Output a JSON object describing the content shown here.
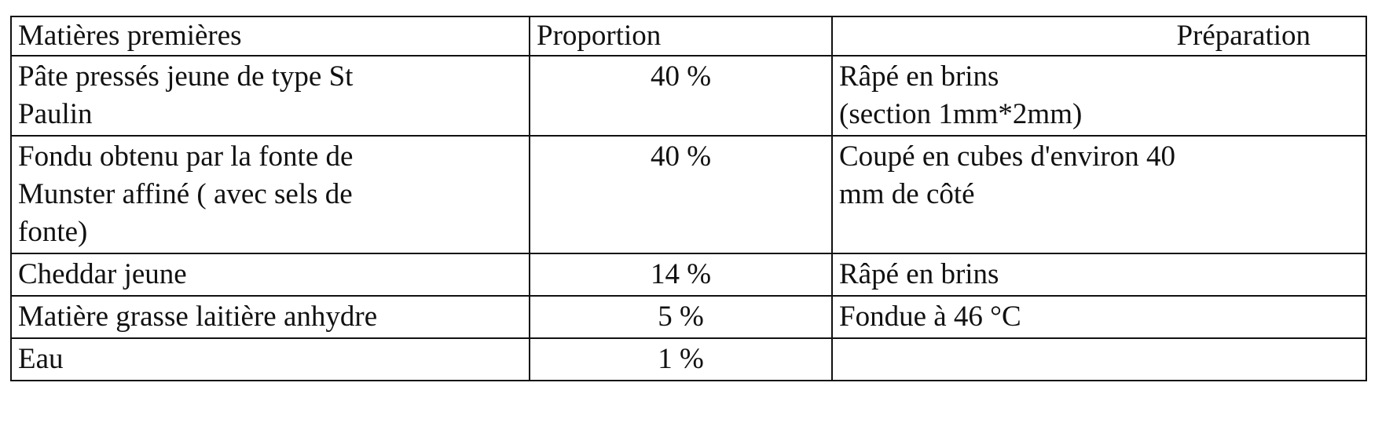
{
  "table": {
    "header": [
      "Matières premières",
      "Proportion",
      "Préparation"
    ],
    "rows": [
      [
        [
          "Pâte pressés jeune de type St",
          "Paulin"
        ],
        [
          "40 %"
        ],
        [
          "Râpé en brins",
          "(section 1mm*2mm)"
        ]
      ],
      [
        [
          "Fondu  obtenu  par la fonte de",
          "Munster affiné ( avec sels de",
          "fonte)"
        ],
        [
          "40 %"
        ],
        [
          "Coupé en cubes d'environ 40",
          "mm de côté"
        ]
      ],
      [
        [
          "Cheddar jeune"
        ],
        [
          "14 %"
        ],
        [
          "Râpé en brins"
        ]
      ],
      [
        [
          "Matière grasse laitière anhydre"
        ],
        [
          "5 %"
        ],
        [
          "Fondue à 46 °C"
        ]
      ],
      [
        [
          "Eau"
        ],
        [
          "1 %"
        ],
        []
      ]
    ]
  }
}
